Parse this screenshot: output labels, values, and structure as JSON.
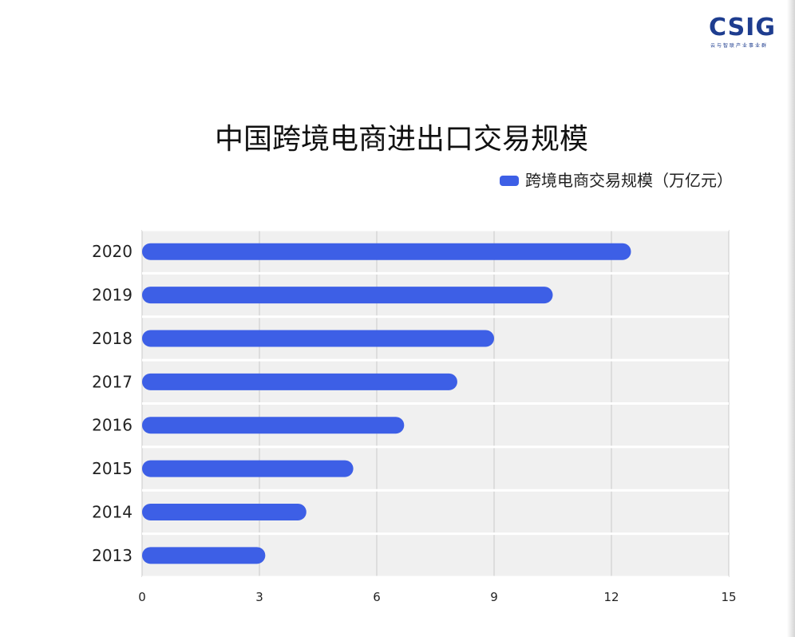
{
  "logo": {
    "main": "CSIG",
    "sub": "云与智联产业事业群"
  },
  "chart_data": {
    "type": "bar",
    "orientation": "horizontal",
    "title": "中国跨境电商进出口交易规模",
    "xlabel": "",
    "ylabel": "",
    "categories": [
      "2020",
      "2019",
      "2018",
      "2017",
      "2016",
      "2015",
      "2014",
      "2013"
    ],
    "series": [
      {
        "name": "跨境电商交易规模（万亿元）",
        "values": [
          12.5,
          10.5,
          9.0,
          8.06,
          6.7,
          5.4,
          4.2,
          3.15
        ]
      }
    ],
    "xlim": [
      0,
      15
    ],
    "xticks": [
      "0",
      "3",
      "6",
      "9",
      "12",
      "15"
    ],
    "grid": true,
    "legend_position": "top-right",
    "bar_color": "#3d5fe6",
    "plot_background": "#f0f0f0",
    "grid_color": "#d0d0d0"
  }
}
